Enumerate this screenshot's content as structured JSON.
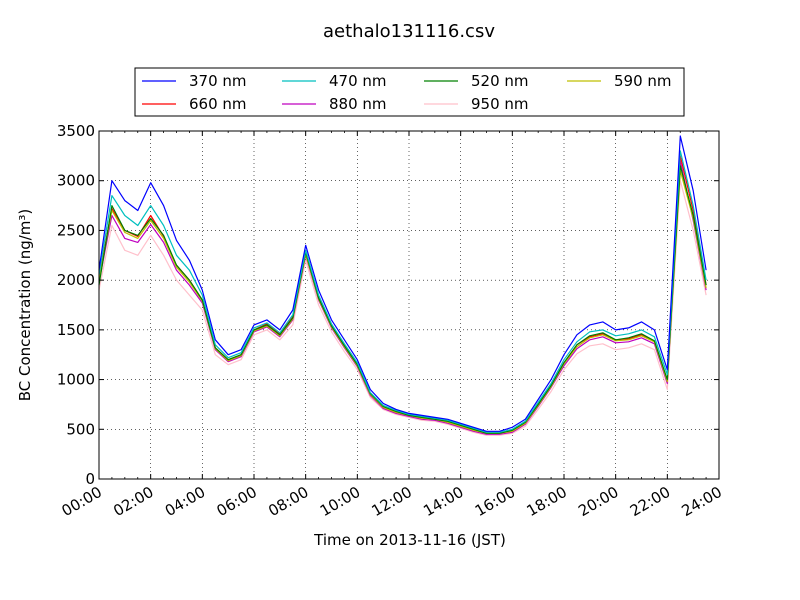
{
  "chart_data": {
    "type": "line",
    "title": "aethalo131116.csv",
    "xlabel": "Time on 2013-11-16 (JST)",
    "ylabel": "BC Concentration (ng/m³)",
    "ylim": [
      0,
      3500
    ],
    "xlim_hours": [
      0,
      24
    ],
    "grid": true,
    "legend": {
      "position": "top",
      "columns": 4
    },
    "x_ticks": [
      "00:00",
      "02:00",
      "04:00",
      "06:00",
      "08:00",
      "10:00",
      "12:00",
      "14:00",
      "16:00",
      "18:00",
      "20:00",
      "22:00",
      "24:00"
    ],
    "y_ticks": [
      0,
      500,
      1000,
      1500,
      2000,
      2500,
      3000,
      3500
    ],
    "x_hours": [
      0,
      0.5,
      1,
      1.5,
      2,
      2.5,
      3,
      3.5,
      4,
      4.5,
      5,
      5.5,
      6,
      6.5,
      7,
      7.5,
      8,
      8.5,
      9,
      9.5,
      10,
      10.5,
      11,
      11.5,
      12,
      12.5,
      13,
      13.5,
      14,
      14.5,
      15,
      15.5,
      16,
      16.5,
      17,
      17.5,
      18,
      18.5,
      19,
      19.5,
      20,
      20.5,
      21,
      21.5,
      22,
      22.5,
      23,
      23.5
    ],
    "series": [
      {
        "name": "370 nm",
        "color": "#0000ff",
        "values": [
          2100,
          3000,
          2800,
          2700,
          2980,
          2750,
          2400,
          2200,
          1900,
          1400,
          1250,
          1300,
          1550,
          1600,
          1500,
          1700,
          2350,
          1900,
          1600,
          1400,
          1200,
          900,
          760,
          700,
          660,
          640,
          620,
          600,
          560,
          520,
          480,
          480,
          520,
          600,
          800,
          1000,
          1250,
          1450,
          1550,
          1580,
          1500,
          1520,
          1580,
          1500,
          1100,
          3450,
          2900,
          2100
        ]
      },
      {
        "name": "470 nm",
        "color": "#00bfbf",
        "values": [
          2050,
          2850,
          2650,
          2550,
          2750,
          2550,
          2250,
          2100,
          1850,
          1350,
          1220,
          1270,
          1520,
          1570,
          1470,
          1650,
          2300,
          1850,
          1560,
          1360,
          1170,
          870,
          740,
          690,
          650,
          630,
          610,
          590,
          550,
          510,
          470,
          470,
          500,
          580,
          770,
          960,
          1200,
          1380,
          1480,
          1500,
          1440,
          1460,
          1500,
          1430,
          1050,
          3300,
          2750,
          2000
        ]
      },
      {
        "name": "520 nm",
        "color": "#008000",
        "values": [
          1950,
          2750,
          2500,
          2450,
          2620,
          2450,
          2150,
          2000,
          1800,
          1320,
          1200,
          1250,
          1500,
          1550,
          1450,
          1620,
          2280,
          1820,
          1540,
          1340,
          1150,
          860,
          730,
          680,
          640,
          620,
          600,
          580,
          540,
          500,
          460,
          460,
          490,
          570,
          750,
          940,
          1170,
          1350,
          1440,
          1470,
          1400,
          1420,
          1460,
          1390,
          1000,
          3150,
          2650,
          1950
        ]
      },
      {
        "name": "590 nm",
        "color": "#bfbf00",
        "values": [
          2000,
          2700,
          2480,
          2420,
          2600,
          2420,
          2130,
          1980,
          1790,
          1310,
          1190,
          1240,
          1490,
          1540,
          1440,
          1610,
          2260,
          1810,
          1530,
          1330,
          1140,
          850,
          720,
          670,
          640,
          610,
          600,
          570,
          530,
          490,
          460,
          460,
          480,
          560,
          740,
          930,
          1160,
          1330,
          1420,
          1450,
          1390,
          1400,
          1440,
          1380,
          980,
          3100,
          2620,
          1920
        ]
      },
      {
        "name": "660 nm",
        "color": "#ff0000",
        "values": [
          2020,
          2720,
          2500,
          2440,
          2650,
          2440,
          2150,
          2000,
          1800,
          1320,
          1200,
          1250,
          1500,
          1560,
          1460,
          1630,
          2270,
          1830,
          1550,
          1350,
          1150,
          860,
          730,
          680,
          650,
          620,
          610,
          580,
          540,
          500,
          470,
          470,
          490,
          570,
          750,
          940,
          1170,
          1350,
          1430,
          1460,
          1400,
          1410,
          1450,
          1380,
          990,
          3250,
          2700,
          1950
        ]
      },
      {
        "name": "880 nm",
        "color": "#bf00bf",
        "values": [
          1980,
          2650,
          2420,
          2380,
          2560,
          2380,
          2100,
          1950,
          1770,
          1300,
          1180,
          1230,
          1480,
          1530,
          1430,
          1600,
          2250,
          1800,
          1520,
          1320,
          1130,
          840,
          710,
          660,
          630,
          600,
          590,
          560,
          520,
          480,
          450,
          450,
          470,
          550,
          730,
          920,
          1140,
          1310,
          1400,
          1430,
          1370,
          1380,
          1420,
          1360,
          960,
          3200,
          2600,
          1900
        ]
      },
      {
        "name": "950 nm",
        "color": "#ffc0cb",
        "values": [
          1900,
          2550,
          2300,
          2250,
          2450,
          2250,
          2000,
          1850,
          1700,
          1250,
          1150,
          1200,
          1450,
          1500,
          1400,
          1550,
          2200,
          1750,
          1480,
          1280,
          1100,
          820,
          700,
          650,
          620,
          590,
          580,
          550,
          510,
          470,
          440,
          440,
          460,
          530,
          700,
          880,
          1100,
          1260,
          1340,
          1360,
          1300,
          1320,
          1360,
          1300,
          900,
          3000,
          2500,
          1850
        ]
      }
    ]
  }
}
